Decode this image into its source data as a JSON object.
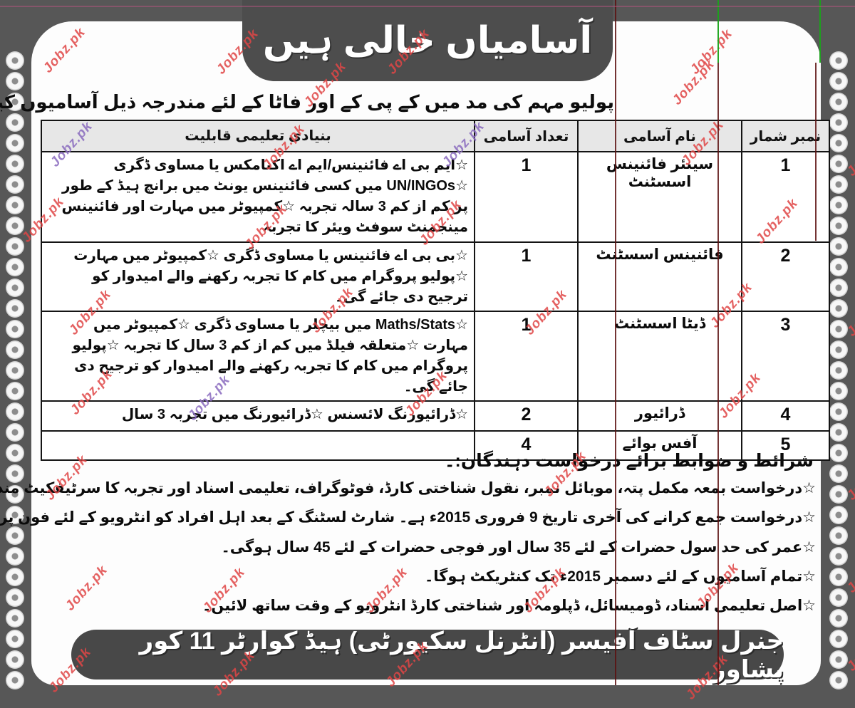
{
  "page": {
    "watermark": "Jobz.pk",
    "title_banner": "آسامیاں خالی ہیں",
    "intro_line": "پولیو مہم کی مد میں کے پی کے اور فاٹا کے لئے مندرجہ ذیل آسامیوں کیلئے درخواستیں مطلوب ہیں۔",
    "footer_banner": "جنرل سٹاف آفیسر (انٹرنل سکیورٹی) ہیڈ کوارٹر 11 کور پشاور"
  },
  "table": {
    "headers": {
      "serial": "نمبر شمار",
      "name": "نام آسامی",
      "count": "تعداد آسامی",
      "qualification": "بنیادی تعلیمی قابلیت"
    },
    "rows": [
      {
        "serial": "1",
        "name": "سینئر فائنینس اسسٹنٹ",
        "count": "1",
        "qualification": "☆ایم بی اے فائنینس/ایم اے اکنامکس یا مساوی ڈگری ☆UN/INGOs میں کسی فائنینس یونٹ میں برانچ ہیڈ کے طور پر کم از کم 3 سالہ تجربہ ☆کمپیوٹر میں مہارت اور فائنینس مینجمنٹ سوفٹ ویئر کا تجربہ"
      },
      {
        "serial": "2",
        "name": "فائنینس اسسٹنٹ",
        "count": "1",
        "qualification": "☆بی بی اے فائنینس یا مساوی ڈگری ☆کمپیوٹر میں مہارت ☆پولیو پروگرام میں کام کا تجربہ رکھنے والے امیدوار کو ترجیح دی جائے گی۔"
      },
      {
        "serial": "3",
        "name": "ڈیٹا اسسٹنٹ",
        "count": "1",
        "qualification": "☆Maths/Stats میں بیچلر یا مساوی ڈگری ☆کمپیوٹر میں مہارت ☆متعلقہ فیلڈ میں کم از کم 3 سال کا تجربہ ☆پولیو پروگرام میں کام کا تجربہ رکھنے والے امیدوار کو ترجیح دی جائے گی۔"
      },
      {
        "serial": "4",
        "name": "ڈرائیور",
        "count": "2",
        "qualification": "☆ڈرائیورنگ لائسنس ☆ڈرائیورنگ میں تجربہ 3 سال"
      },
      {
        "serial": "5",
        "name": "آفس بوائے",
        "count": "4",
        "qualification": ""
      }
    ]
  },
  "conditions": {
    "heading": "شرائط و ضوابط برائے درخواست دہندگان:۔",
    "items": [
      "☆درخواست بمعہ مکمل پتہ، موبائل نمبر، نقول شناختی کارڈ، فوٹوگراف، تعلیمی اسناد اور تجربہ کا سرٹیفکیٹ مندرجہ ذیل پتہ پر ارسال کریں۔",
      "☆درخواست جمع کرانے کی آخری تاریخ 9 فروری 2015ء ہے۔ شارٹ لسٹنگ کے بعد اہل افراد کو انٹرویو کے لئے فون پر مطلع کیا جائے گا۔",
      "☆عمر کی حد سول حضرات کے لئے 35 سال اور فوجی حضرات کے لئے 45 سال ہوگی۔",
      "☆تمام آسامیوں کے لئے دسمبر 2015ء تک کنٹریکٹ ہوگا۔",
      "☆اصل تعلیمی اسناد، ڈومیسائل، ڈپلومہ اور شناختی کارڈ انٹرویو کے وقت ساتھ لائیں۔"
    ]
  },
  "colors": {
    "border_gray": "#575757",
    "banner_gray": "#4d4d4d",
    "watermark_red": "#e04646",
    "watermark_purple": "#8a6bbf",
    "artifact_maroon": "#5c1010",
    "artifact_green": "#1aa31a",
    "artifact_pink": "#c05585"
  }
}
